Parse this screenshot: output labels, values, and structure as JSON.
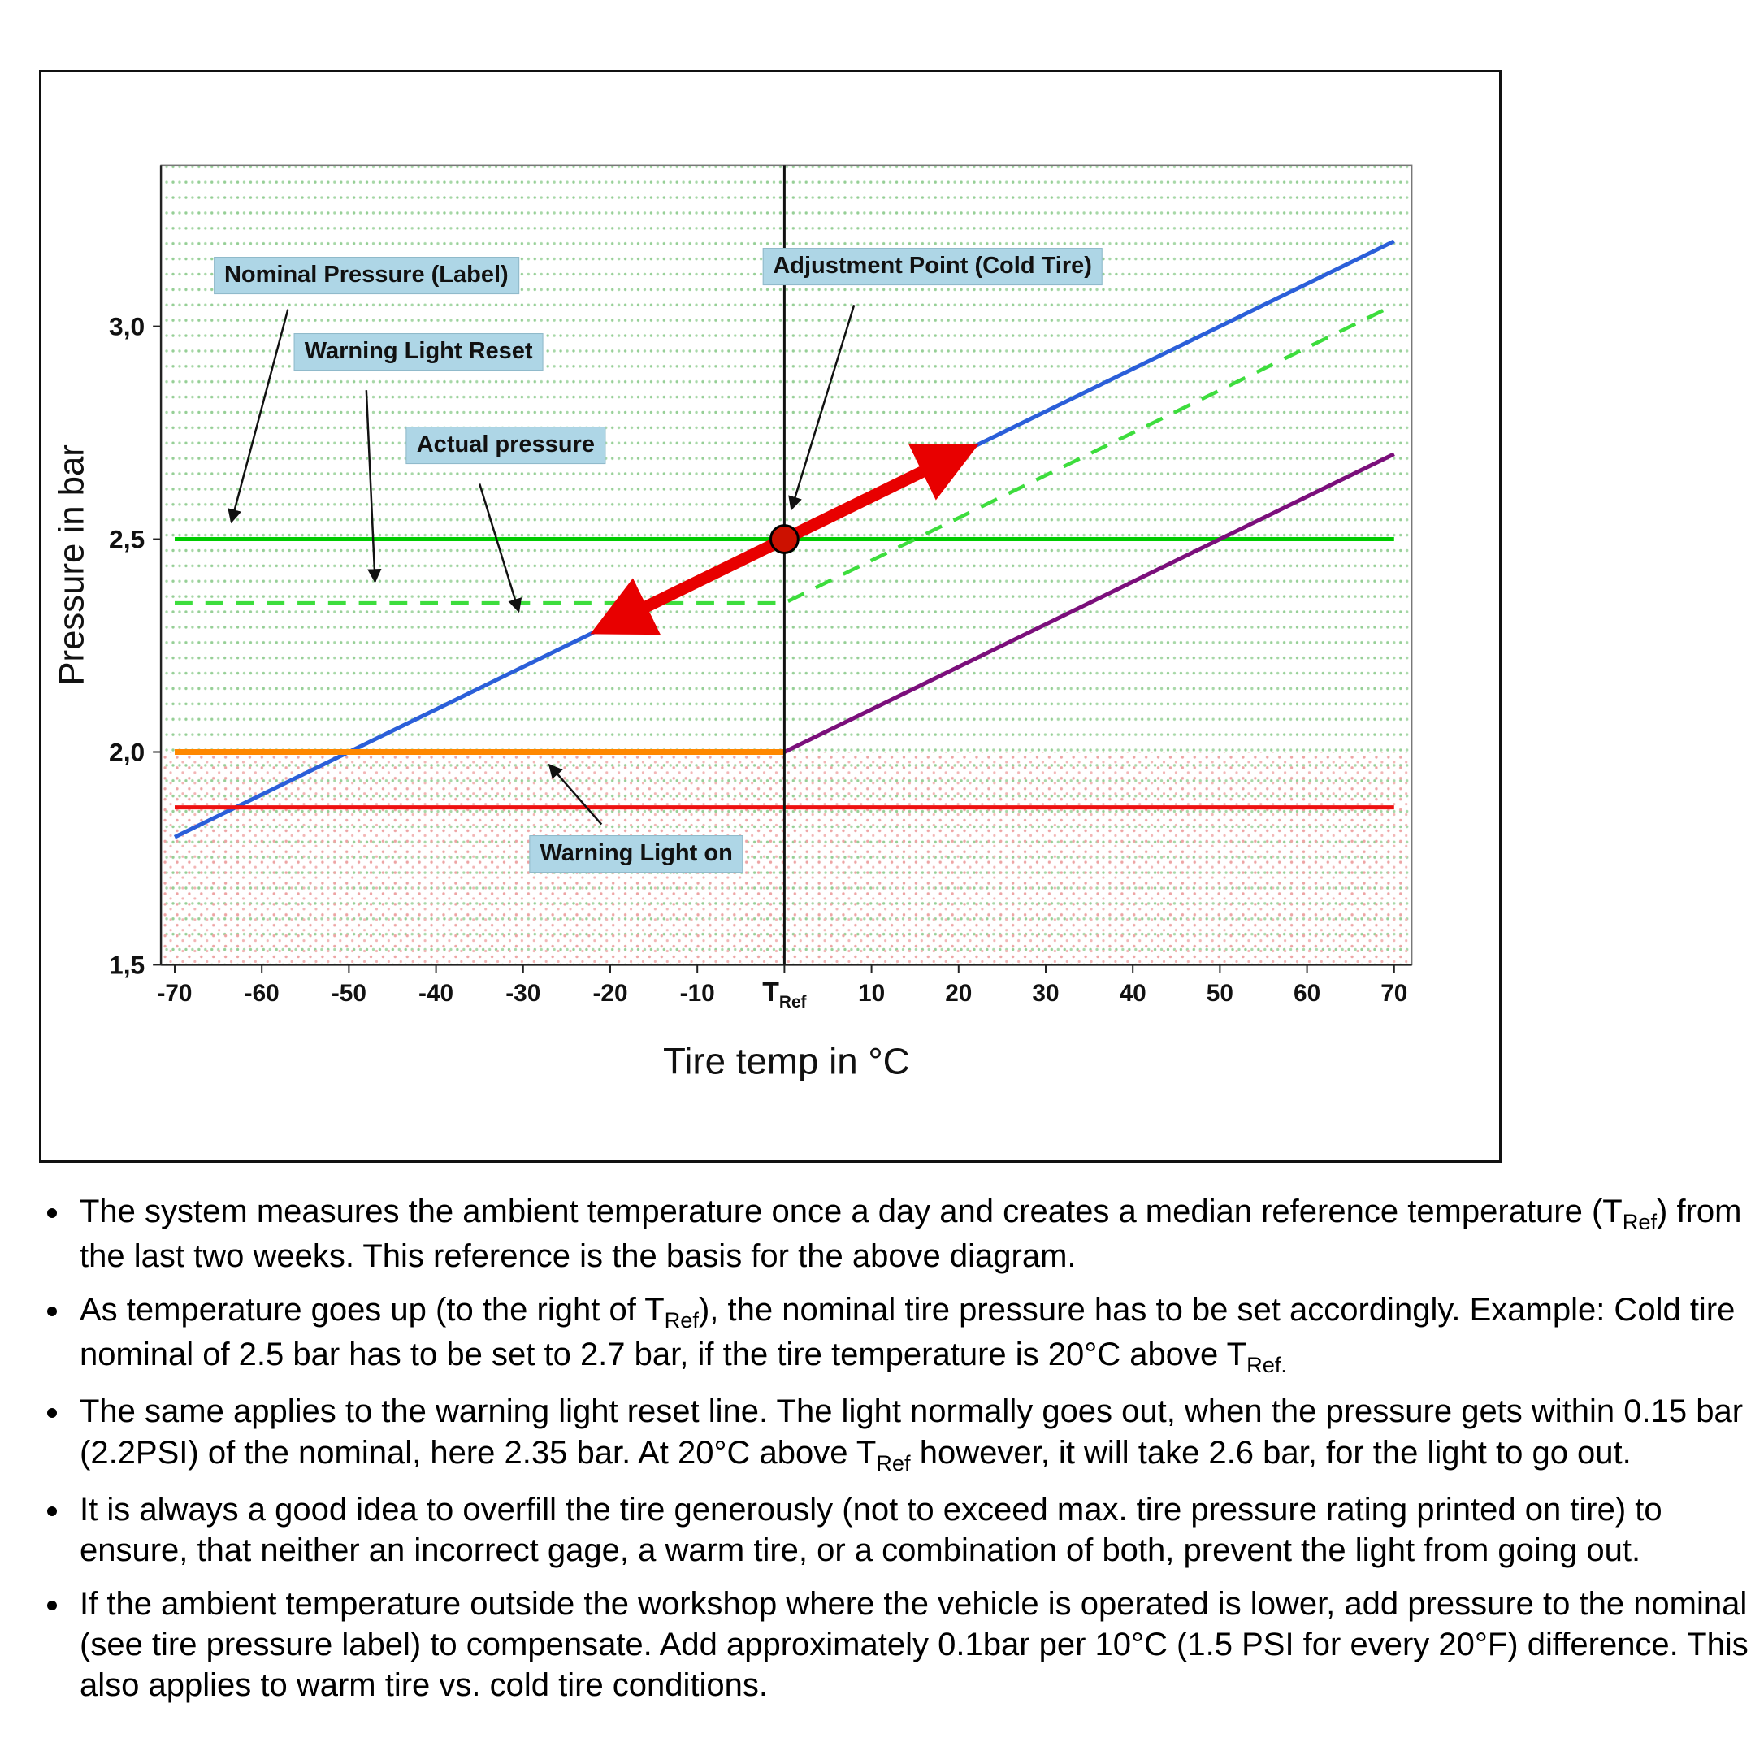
{
  "page": {
    "background": "#ffffff"
  },
  "chart_data": {
    "type": "line",
    "title": "",
    "xlabel": "Tire temp in °C",
    "ylabel": "Pressure in bar",
    "xlim": [
      -70,
      70
    ],
    "ylim": [
      1.5,
      3.35
    ],
    "grid": "fine dotted green above, pink stipple below 2.0 bar",
    "x_ticks": [
      {
        "value": -70,
        "label": "-70"
      },
      {
        "value": -60,
        "label": "-60"
      },
      {
        "value": -50,
        "label": "-50"
      },
      {
        "value": -40,
        "label": "-40"
      },
      {
        "value": -30,
        "label": "-30"
      },
      {
        "value": -20,
        "label": "-20"
      },
      {
        "value": -10,
        "label": "-10"
      },
      {
        "value": 0,
        "label": "T_{Ref}",
        "is_reference": true
      },
      {
        "value": 10,
        "label": "10"
      },
      {
        "value": 20,
        "label": "20"
      },
      {
        "value": 30,
        "label": "30"
      },
      {
        "value": 40,
        "label": "40"
      },
      {
        "value": 50,
        "label": "50"
      },
      {
        "value": 60,
        "label": "60"
      },
      {
        "value": 70,
        "label": "70"
      }
    ],
    "y_ticks": [
      {
        "value": 1.5,
        "label": "1,5"
      },
      {
        "value": 2.0,
        "label": "2,0"
      },
      {
        "value": 2.5,
        "label": "2,5"
      },
      {
        "value": 3.0,
        "label": "3,0"
      }
    ],
    "series": [
      {
        "name": "nominal-pressure-line",
        "label": "Nominal Pressure (Label)",
        "color": "#00cc00",
        "dash": "solid",
        "width": 5,
        "points": [
          [
            -70,
            2.5
          ],
          [
            70,
            2.5
          ]
        ]
      },
      {
        "name": "warning-light-reset-line",
        "label": "Warning Light Reset",
        "color": "#3ddd3d",
        "dash": "dashed",
        "width": 4.5,
        "points": [
          [
            -70,
            2.35
          ],
          [
            0,
            2.35
          ],
          [
            70,
            3.05
          ]
        ]
      },
      {
        "name": "actual-pressure-line",
        "label": "Actual pressure",
        "color": "#2b5fd9",
        "dash": "solid",
        "width": 5,
        "points": [
          [
            -70,
            1.8
          ],
          [
            70,
            3.2
          ]
        ]
      },
      {
        "name": "cold-side-threshold-line",
        "label": "",
        "color": "#ff8800",
        "dash": "solid",
        "width": 7,
        "points": [
          [
            -70,
            2.0
          ],
          [
            0,
            2.0
          ]
        ]
      },
      {
        "name": "warm-side-threshold-line",
        "label": "",
        "color": "#7b0f7b",
        "dash": "solid",
        "width": 5,
        "points": [
          [
            0,
            2.0
          ],
          [
            70,
            2.7
          ]
        ]
      },
      {
        "name": "warning-light-on-line",
        "label": "Warning Light on",
        "color": "#ee1111",
        "dash": "solid",
        "width": 5,
        "points": [
          [
            -70,
            1.87
          ],
          [
            70,
            1.87
          ]
        ]
      }
    ],
    "vertical_reference_line_x": 0,
    "adjustment_point": {
      "x": 0,
      "y": 2.5,
      "color": "#cc1100"
    },
    "adjustment_arrow": {
      "from": [
        -21,
        2.29
      ],
      "to": [
        21,
        2.71
      ],
      "color": "#e80000"
    },
    "annotations": [
      {
        "text": "Nominal Pressure (Label)",
        "pos": [
          -48,
          3.12
        ],
        "arrow_from": [
          -57,
          3.04
        ],
        "arrow_to": [
          -63.5,
          2.54
        ]
      },
      {
        "text": "Warning Light Reset",
        "pos": [
          -42,
          2.94
        ],
        "arrow_from": [
          -48,
          2.85
        ],
        "arrow_to": [
          -47,
          2.4
        ]
      },
      {
        "text": "Actual pressure",
        "pos": [
          -32,
          2.72
        ],
        "arrow_from": [
          -35,
          2.63
        ],
        "arrow_to": [
          -30.5,
          2.33
        ]
      },
      {
        "text": "Adjustment Point (Cold Tire)",
        "pos": [
          17,
          3.14
        ],
        "arrow_from": [
          8,
          3.05
        ],
        "arrow_to": [
          0.8,
          2.57
        ]
      },
      {
        "text": "Warning Light on",
        "pos": [
          -17,
          1.76
        ],
        "arrow_from": [
          -21,
          1.83
        ],
        "arrow_to": [
          -27,
          1.97
        ]
      }
    ],
    "label_box_color": "#aed6e6"
  },
  "notes": {
    "bullets": [
      "The system measures the ambient temperature once a day and creates a median reference temperature (T_{Ref}) from the last two weeks. This reference is the basis for the above diagram.",
      "As temperature goes up (to the right of T_{Ref}), the nominal tire pressure has to be set accordingly. Example: Cold tire nominal of 2.5 bar has to be set to 2.7 bar, if the tire temperature is 20°C above T_{Ref.}",
      "The same applies to the warning light reset line. The light normally goes out, when the pressure gets within 0.15 bar (2.2PSI) of the nominal, here 2.35 bar. At 20°C above T_{Ref} however, it will take 2.6 bar, for the light to go out.",
      "It is always a good idea to overfill the tire generously (not to exceed max. tire pressure rating printed on tire) to ensure, that neither an incorrect gage, a warm tire, or a combination of both, prevent the light from going out.",
      "If the ambient temperature outside the workshop where the vehicle is operated is lower, add pressure to the nominal (see tire pressure label) to compensate. Add approximately 0.1bar per 10°C (1.5 PSI for every 20°F) difference. This also applies to warm tire vs. cold tire conditions."
    ]
  }
}
